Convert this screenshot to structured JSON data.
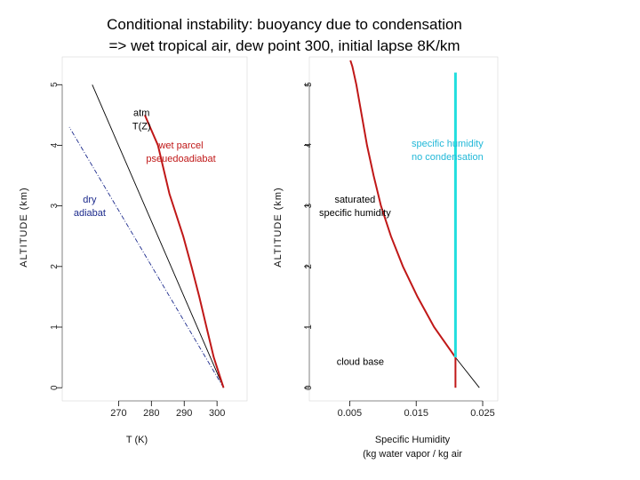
{
  "title": {
    "line1": "Conditional instability:  buoyancy due to condensation",
    "line2": "=> wet tropical air, dew point 300, initial lapse 8K/km"
  },
  "colors": {
    "axis": "#000000",
    "atm": "#000000",
    "dry": "#1c2a8c",
    "wet": "#c01818",
    "cyan": "#22dede",
    "label_red": "#c01818",
    "label_blue": "#1c2a8c",
    "label_cyan": "#22b8d8"
  },
  "chart_data": [
    {
      "type": "line",
      "panel": "left",
      "xlabel": "T (K)",
      "ylabel": "ALTITUDE (km)",
      "xlim": [
        255,
        307
      ],
      "ylim": [
        -0.1,
        5.4
      ],
      "xticks": [
        270,
        280,
        290,
        300
      ],
      "xtick_labels": [
        "270",
        "280",
        "290",
        "300"
      ],
      "yticks": [
        0,
        1,
        2,
        3,
        4,
        5
      ],
      "ytick_labels": [
        "0",
        "1",
        "2",
        "3",
        "4",
        "5"
      ],
      "series": [
        {
          "name": "atm T(Z)",
          "style": "solid",
          "color_key": "atm",
          "x": [
            302,
            262
          ],
          "y": [
            0,
            5
          ]
        },
        {
          "name": "dry adiabat",
          "style": "dotdash",
          "color_key": "dry",
          "x": [
            302,
            255
          ],
          "y": [
            0,
            4.3
          ]
        },
        {
          "name": "wet parcel pseuedoadiabat",
          "style": "solid",
          "color_key": "wet",
          "x": [
            302,
            299,
            296.8,
            294.6,
            292.2,
            289.7,
            285.5,
            282,
            278
          ],
          "y": [
            0,
            0.5,
            1,
            1.5,
            2,
            2.5,
            3.2,
            4,
            4.5
          ]
        }
      ],
      "annotations": [
        {
          "lines": [
            "atm",
            "T(Z)"
          ],
          "x": 277,
          "y": 4.48,
          "color_key": "atm"
        },
        {
          "lines": [
            "wet parcel",
            "pseuedoadiabat"
          ],
          "x": 289,
          "y": 3.95,
          "color_key": "label_red"
        },
        {
          "lines": [
            "dry",
            "adiabat"
          ],
          "x": 261.2,
          "y": 3.05,
          "color_key": "label_blue"
        }
      ]
    },
    {
      "type": "line",
      "panel": "right",
      "xlabel_lines": [
        "Specific Humidity",
        "(kg water vapor / kg air"
      ],
      "ylabel": "ALTITUDE (km)",
      "xlim": [
        0.0,
        0.0262
      ],
      "ylim": [
        -0.1,
        5.4
      ],
      "xticks": [
        0.005,
        0.015,
        0.025
      ],
      "xtick_labels": [
        "0.005",
        "0.015",
        "0.025"
      ],
      "yticks": [
        0,
        1,
        2,
        3,
        4,
        5
      ],
      "ytick_labels": [
        "0",
        "1",
        "2",
        "3",
        "4",
        "5"
      ],
      "series": [
        {
          "name": "saturated specific humidity (extended)",
          "style": "solid",
          "color_key": "atm",
          "x": [
            0.0209,
            0.0245
          ],
          "y": [
            0.5,
            0
          ]
        },
        {
          "name": "saturated specific humidity",
          "style": "solid",
          "color_key": "wet",
          "x": [
            0.0209,
            0.0177,
            0.0152,
            0.013,
            0.0112,
            0.0097,
            0.0086,
            0.0076,
            0.0068,
            0.006,
            0.0054,
            0.0051
          ],
          "y": [
            0.5,
            1,
            1.5,
            2,
            2.5,
            3,
            3.5,
            4,
            4.5,
            5.0,
            5.3,
            5.4
          ]
        },
        {
          "name": "specific humidity no condensation",
          "style": "solid",
          "color_key": "cyan",
          "x": [
            0.0209,
            0.0209
          ],
          "y": [
            0.5,
            5.2
          ]
        },
        {
          "name": "below cloud base",
          "style": "solid",
          "color_key": "wet",
          "x": [
            0.0209,
            0.0209
          ],
          "y": [
            0,
            0.5
          ]
        }
      ],
      "annotations": [
        {
          "lines": [
            "specific humidity",
            "no condensation"
          ],
          "x": 0.0197,
          "y": 3.98,
          "color_key": "label_cyan"
        },
        {
          "lines": [
            "saturated",
            "specific humidity"
          ],
          "x": 0.0058,
          "y": 3.05,
          "color_key": "atm"
        },
        {
          "lines": [
            "cloud base"
          ],
          "x": 0.0066,
          "y": 0.38,
          "color_key": "atm"
        }
      ]
    }
  ]
}
